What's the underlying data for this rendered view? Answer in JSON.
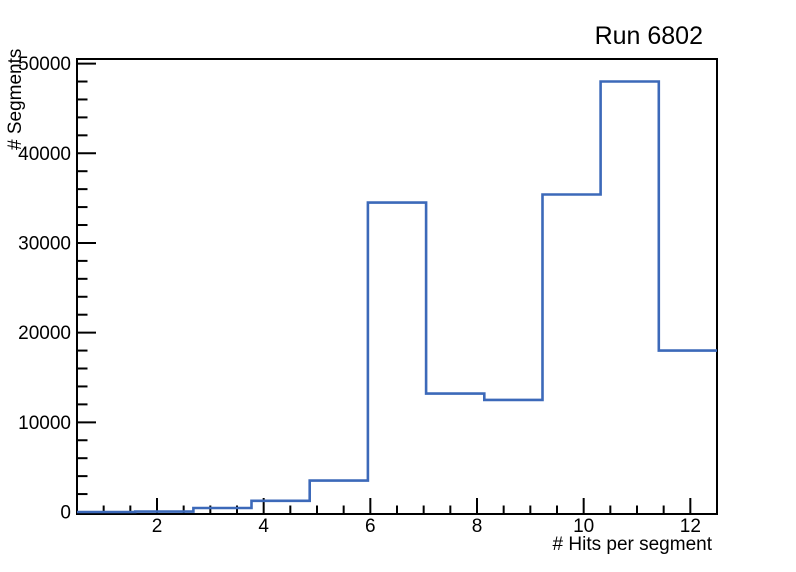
{
  "chart_data": {
    "type": "bar",
    "style": "step-outline-histogram",
    "title": "Run 6802",
    "xlabel": "# Hits per segment",
    "ylabel": "# Segments",
    "xlim": [
      0.5,
      12.5
    ],
    "ylim": [
      0,
      50400
    ],
    "n_bins": 11,
    "bin_edges": [
      0.5,
      1.5909,
      2.6818,
      3.7727,
      4.8636,
      5.9545,
      7.0455,
      8.1364,
      9.2273,
      10.3182,
      11.4091,
      12.5
    ],
    "values": [
      0,
      50,
      450,
      1250,
      3500,
      34500,
      13200,
      12500,
      35400,
      48000,
      18000
    ],
    "x_ticks": [
      2,
      4,
      6,
      8,
      10,
      12
    ],
    "x_minor_tick_step": 0.5,
    "y_ticks": [
      0,
      10000,
      20000,
      30000,
      40000,
      50000
    ],
    "y_minor_tick_step": 2000,
    "grid": false,
    "legend": false,
    "line_color": "#3c69b9",
    "axis_color": "#000000",
    "text_color": "#000000",
    "background_color": "#ffffff"
  }
}
